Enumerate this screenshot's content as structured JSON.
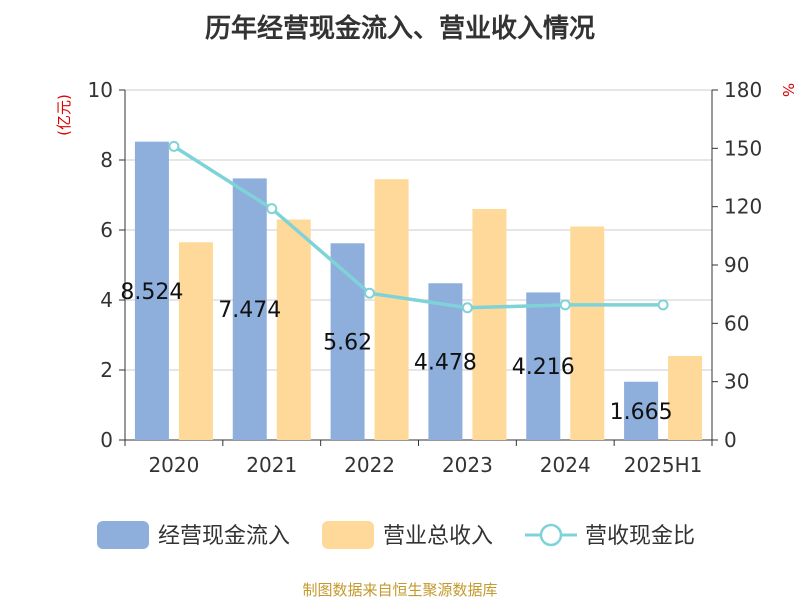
{
  "title": "历年经营现金流入、营业收入情况",
  "source": "制图数据来自恒生聚源数据库",
  "chart_data": {
    "type": "bar",
    "title": "历年经营现金流入、营业收入情况",
    "categories": [
      "2020",
      "2021",
      "2022",
      "2023",
      "2024",
      "2025H1"
    ],
    "left_axis": {
      "unit": "(亿元)",
      "ylim": [
        0,
        10
      ],
      "ticks": [
        "0",
        "2",
        "4",
        "6",
        "8",
        "10"
      ]
    },
    "right_axis": {
      "unit": "%",
      "ylim": [
        0,
        180
      ],
      "ticks": [
        "0",
        "30",
        "60",
        "90",
        "120",
        "150",
        "180"
      ]
    },
    "series": [
      {
        "name": "经营现金流入",
        "type": "bar",
        "axis": "left",
        "color": "#8eaedb",
        "values": [
          8.524,
          7.474,
          5.62,
          4.478,
          4.216,
          1.665
        ],
        "labels": [
          "8.524",
          "7.474",
          "5.62",
          "4.478",
          "4.216",
          "1.665"
        ]
      },
      {
        "name": "营业总收入",
        "type": "bar",
        "axis": "left",
        "color": "#fed999",
        "values": [
          5.65,
          6.3,
          7.45,
          6.6,
          6.1,
          2.4
        ]
      },
      {
        "name": "营收现金比",
        "type": "line",
        "axis": "right",
        "color": "#7fd3d8",
        "values": [
          151.0,
          119.0,
          75.5,
          68.0,
          69.5,
          69.5
        ]
      }
    ],
    "grid": true,
    "legend": "bottom"
  }
}
